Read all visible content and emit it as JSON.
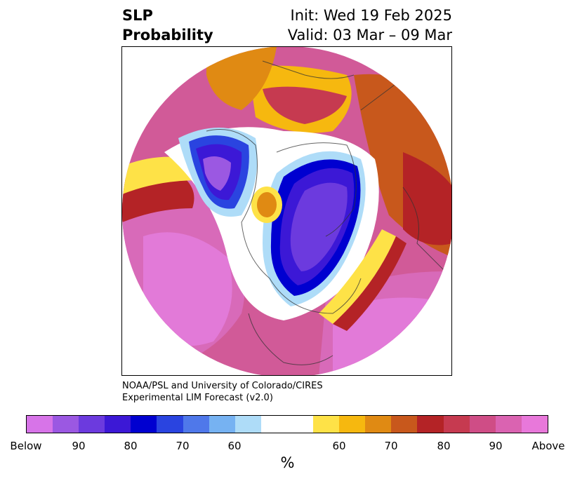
{
  "title": {
    "left_line1": "SLP",
    "left_line2": "Probability",
    "right_line1": "Init: Wed 19 Feb 2025",
    "right_line2": "Valid: 03 Mar – 09 Mar"
  },
  "credit": {
    "line1": "NOAA/PSL and University of Colorado/CIRES",
    "line2": "Experimental LIM Forecast (v2.0)"
  },
  "colorbar": {
    "unit": "%",
    "labels": [
      "Below",
      "90",
      "80",
      "70",
      "60",
      "60",
      "70",
      "80",
      "90",
      "Above"
    ],
    "colors": [
      "#d774e8",
      "#9b58e2",
      "#6c3ade",
      "#3c18d6",
      "#0000d0",
      "#2a44e0",
      "#4f78ea",
      "#76b2f2",
      "#aedcf8",
      "#ffffff",
      "#fee247",
      "#f6b80f",
      "#e08a13",
      "#c8581c",
      "#b42326",
      "#c63a50",
      "#cf4d86",
      "#da63b1",
      "#e878da"
    ]
  },
  "map": {
    "projection": "north-polar-stereographic",
    "region": "Northern Hemisphere (North Pacific / North America / Atlantic)",
    "color_ocean_above": "#e27ad8",
    "color_below": "#6c3ade"
  }
}
